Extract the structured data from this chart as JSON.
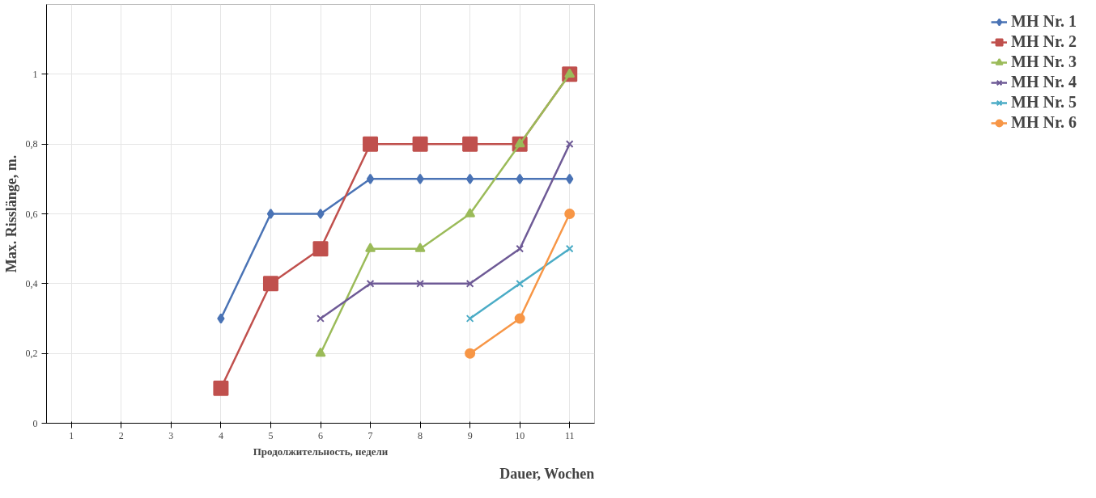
{
  "chart_data": {
    "type": "line",
    "ylabel": "Max. Risslänge, m.",
    "xlabel": "Продолжительность, недели",
    "annotations": [
      "Dauer, Wochen"
    ],
    "categories": [
      "1",
      "2",
      "3",
      "4",
      "5",
      "6",
      "7",
      "8",
      "9",
      "10",
      "11"
    ],
    "ylim": [
      0,
      1.2
    ],
    "yticks": [
      0,
      {
        "value": 0.2,
        "label": "0,2"
      },
      {
        "value": 0.4,
        "label": "0,4"
      },
      {
        "value": 0.6,
        "label": "0,6"
      },
      {
        "value": 0.8,
        "label": "0,8"
      },
      1
    ],
    "grid": true,
    "legend": "right",
    "series": [
      {
        "name": "MH Nr. 1",
        "color": "#4a73b5",
        "marker": "diamond",
        "values": [
          null,
          null,
          null,
          0.3,
          0.6,
          0.6,
          0.7,
          0.7,
          0.7,
          0.7,
          0.7
        ]
      },
      {
        "name": "MH Nr. 2",
        "color": "#c0504d",
        "marker": "square",
        "values": [
          null,
          null,
          null,
          0.1,
          0.4,
          0.5,
          0.8,
          0.8,
          0.8,
          0.8,
          1.0
        ]
      },
      {
        "name": "MH Nr. 3",
        "color": "#9bbb59",
        "marker": "triangle",
        "values": [
          null,
          null,
          null,
          null,
          null,
          0.2,
          0.5,
          0.5,
          0.6,
          0.8,
          1.0
        ]
      },
      {
        "name": "MH Nr. 4",
        "color": "#6e5a96",
        "marker": "cross",
        "values": [
          null,
          null,
          null,
          null,
          null,
          0.3,
          0.4,
          0.4,
          0.4,
          0.5,
          0.8
        ]
      },
      {
        "name": "MH Nr. 5",
        "color": "#4bacc6",
        "marker": "cross",
        "values": [
          null,
          null,
          null,
          null,
          null,
          null,
          null,
          null,
          0.3,
          0.4,
          0.5
        ]
      },
      {
        "name": "MH Nr. 6",
        "color": "#f79646",
        "marker": "circle",
        "values": [
          null,
          null,
          null,
          null,
          null,
          null,
          null,
          null,
          0.2,
          0.3,
          0.6
        ]
      }
    ]
  }
}
